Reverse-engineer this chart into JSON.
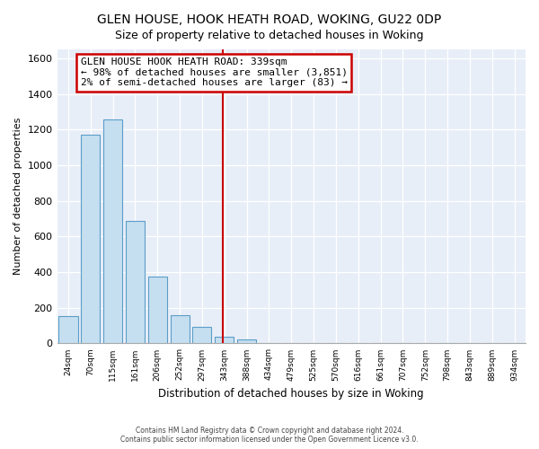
{
  "title": "GLEN HOUSE, HOOK HEATH ROAD, WOKING, GU22 0DP",
  "subtitle": "Size of property relative to detached houses in Woking",
  "xlabel": "Distribution of detached houses by size in Woking",
  "ylabel": "Number of detached properties",
  "bar_labels": [
    "24sqm",
    "70sqm",
    "115sqm",
    "161sqm",
    "206sqm",
    "252sqm",
    "297sqm",
    "343sqm",
    "388sqm",
    "434sqm",
    "479sqm",
    "525sqm",
    "570sqm",
    "616sqm",
    "661sqm",
    "707sqm",
    "752sqm",
    "798sqm",
    "843sqm",
    "889sqm",
    "934sqm"
  ],
  "bar_values": [
    155,
    1170,
    1255,
    685,
    375,
    160,
    95,
    35,
    20,
    0,
    0,
    0,
    0,
    0,
    0,
    0,
    0,
    0,
    0,
    0,
    0
  ],
  "bar_color": "#c5dff0",
  "bar_edge_color": "#5b9dc8",
  "vline_color": "#cc0000",
  "vline_x": 7.0,
  "annotation_title": "GLEN HOUSE HOOK HEATH ROAD: 339sqm",
  "annotation_line1": "← 98% of detached houses are smaller (3,851)",
  "annotation_line2": "2% of semi-detached houses are larger (83) →",
  "annotation_box_edgecolor": "#cc0000",
  "ylim": [
    0,
    1650
  ],
  "yticks": [
    0,
    200,
    400,
    600,
    800,
    1000,
    1200,
    1400,
    1600
  ],
  "footnote1": "Contains HM Land Registry data © Crown copyright and database right 2024.",
  "footnote2": "Contains public sector information licensed under the Open Government Licence v3.0.",
  "bg_color": "#ffffff",
  "plot_bg_color": "#e8eef8",
  "grid_color": "#ffffff",
  "title_fontsize": 10,
  "subtitle_fontsize": 9
}
